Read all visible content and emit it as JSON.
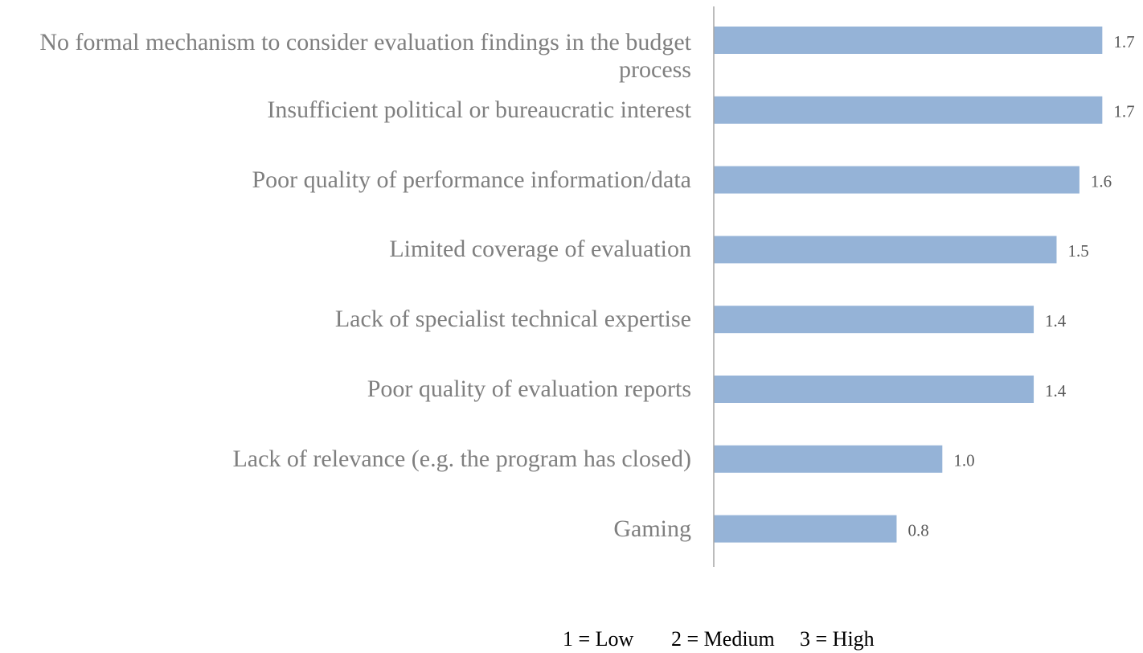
{
  "chart_data": {
    "type": "barh",
    "categories": [
      "No formal mechanism to consider evaluation findings in the budget process",
      "Insufficient political or bureaucratic interest",
      "Poor quality of performance information/data",
      "Limited coverage of evaluation",
      "Lack of specialist technical expertise",
      "Poor quality of evaluation reports",
      "Lack of relevance (e.g. the program has closed)",
      "Gaming"
    ],
    "values": [
      1.7,
      1.7,
      1.6,
      1.5,
      1.4,
      1.4,
      1.0,
      0.8
    ],
    "value_labels": [
      "1.7",
      "1.7",
      "1.6",
      "1.5",
      "1.4",
      "1.4",
      "1.0",
      "0.8"
    ],
    "color": "#95b3d7",
    "xlim": [
      0,
      1.85
    ],
    "annotation": [
      "1 = Low",
      "2 = Medium",
      "3 = High"
    ]
  }
}
